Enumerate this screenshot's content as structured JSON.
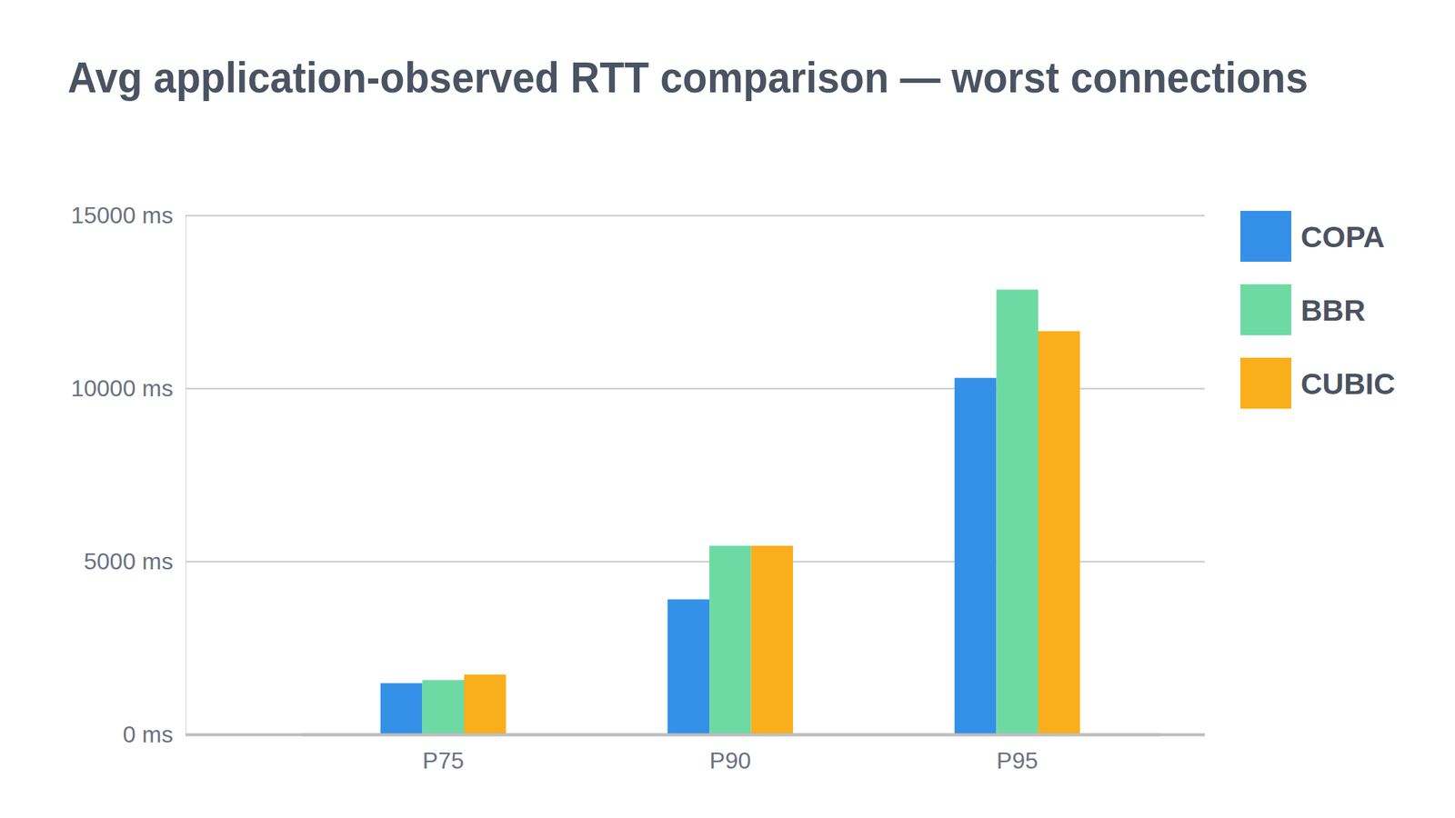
{
  "chart_data": {
    "type": "bar",
    "title": "Avg application-observed RTT comparison — worst connections",
    "categories": [
      "P75",
      "P90",
      "P95"
    ],
    "series": [
      {
        "name": "COPA",
        "color": "#3590e8",
        "values": [
          1480,
          3900,
          10300
        ]
      },
      {
        "name": "BBR",
        "color": "#6edaa3",
        "values": [
          1570,
          5450,
          12850
        ]
      },
      {
        "name": "CUBIC",
        "color": "#f9ae1c",
        "values": [
          1730,
          5450,
          11650
        ]
      }
    ],
    "ylim": [
      0,
      15000
    ],
    "yticks": [
      {
        "value": 0,
        "label": "0 ms"
      },
      {
        "value": 5000,
        "label": "5000 ms"
      },
      {
        "value": 10000,
        "label": "10000 ms"
      },
      {
        "value": 15000,
        "label": "15000 ms"
      }
    ],
    "grid": true,
    "legend": "right"
  }
}
